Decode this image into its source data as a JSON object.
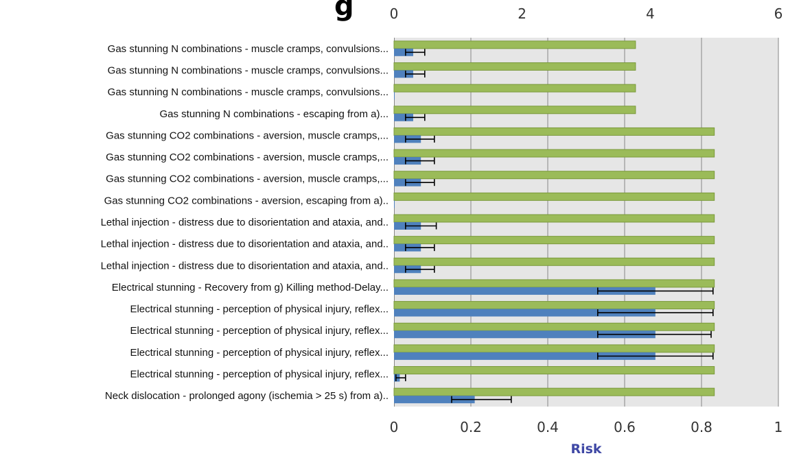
{
  "title_fragment": "g",
  "chart_data": {
    "type": "bar",
    "orientation": "horizontal",
    "categories": [
      "Gas stunning N combinations - muscle cramps, convulsions...",
      "Gas stunning N combinations - muscle cramps, convulsions...",
      "Gas stunning N combinations - muscle cramps, convulsions...",
      "Gas stunning N combinations - escaping from a)...",
      "Gas stunning CO2 combinations - aversion, muscle cramps,...",
      "Gas stunning CO2 combinations - aversion, muscle cramps,...",
      "Gas stunning CO2 combinations - aversion, muscle cramps,...",
      "Gas stunning CO2 combinations - aversion, escaping from a)..",
      "Lethal injection - distress due to disorientation and ataxia, and..",
      "Lethal injection - distress due to disorientation and ataxia, and..",
      "Lethal injection - distress due to disorientation and ataxia, and..",
      "Electrical stunning - Recovery from g) Killing method-Delay...",
      "Electrical stunning - perception of physical injury, reflex...",
      "Electrical stunning - perception of physical injury, reflex...",
      "Electrical stunning - perception of physical injury, reflex...",
      "Electrical stunning - perception of physical injury, reflex...",
      "Neck dislocation - prolonged agony (ischemia > 25 s) from a).."
    ],
    "series": [
      {
        "axis": "top",
        "color": "#9bbb59",
        "values": [
          3.77,
          3.77,
          3.77,
          3.77,
          5.0,
          5.0,
          5.0,
          5.0,
          5.0,
          5.0,
          5.0,
          5.0,
          5.0,
          5.0,
          5.0,
          5.0,
          5.0
        ]
      },
      {
        "axis": "bottom",
        "color": "#4f81bd",
        "values": [
          0.05,
          0.05,
          0.0,
          0.05,
          0.07,
          0.07,
          0.07,
          0.0,
          0.07,
          0.07,
          0.07,
          0.68,
          0.68,
          0.68,
          0.68,
          0.015,
          0.21
        ],
        "error_low": [
          0.03,
          0.03,
          0.0,
          0.03,
          0.03,
          0.03,
          0.03,
          0.0,
          0.03,
          0.03,
          0.03,
          0.53,
          0.53,
          0.53,
          0.53,
          0.005,
          0.15
        ],
        "error_high": [
          0.08,
          0.08,
          0.0,
          0.08,
          0.105,
          0.105,
          0.105,
          0.0,
          0.11,
          0.105,
          0.105,
          0.83,
          0.83,
          0.825,
          0.83,
          0.03,
          0.305
        ]
      }
    ],
    "top_axis": {
      "min": 0,
      "max": 6,
      "ticks": [
        "0",
        "2",
        "4",
        "6"
      ]
    },
    "bottom_axis": {
      "min": 0,
      "max": 1,
      "ticks": [
        "0",
        "0.2",
        "0.4",
        "0.6",
        "0.8",
        "1"
      ],
      "label": "Risk"
    },
    "grid": true,
    "plot_background": "#e6e6e6",
    "grid_color": "#868686",
    "axis_title_color": "#3f48a5"
  }
}
